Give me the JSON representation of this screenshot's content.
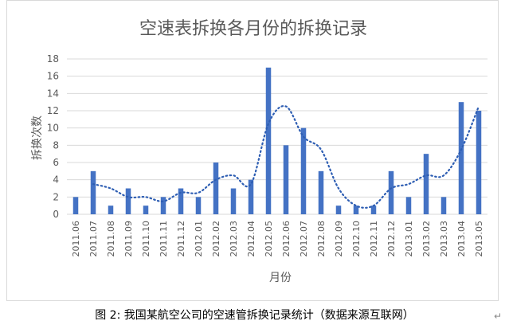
{
  "caption": "图 2: 我国某航空公司的空速管拆换记录统计（数据来源互联网）",
  "caption_return_mark": "↵",
  "colors": {
    "bar": "#4472c4",
    "trend": "#2e5eb3",
    "grid": "#d9d9d9",
    "text": "#595959"
  },
  "chart_data": {
    "type": "bar",
    "title": "空速表拆换各月份的拆换记录",
    "xlabel": "月份",
    "ylabel": "拆换次数",
    "ylim": [
      0,
      18
    ],
    "yticks": [
      0,
      2,
      4,
      6,
      8,
      10,
      12,
      14,
      16,
      18
    ],
    "grid": true,
    "categories": [
      "2011.06",
      "2011.07",
      "2011.08",
      "2011.09",
      "2011.10",
      "2011.11",
      "2011.12",
      "2012.01",
      "2012.02",
      "2012.03",
      "2012.04",
      "2012.05",
      "2012.06",
      "2012.07",
      "2012.08",
      "2012.09",
      "2012.10",
      "2012.11",
      "2012.12",
      "2013.01",
      "2013.02",
      "2013.03",
      "2013.04",
      "2013.05"
    ],
    "series": [
      {
        "type": "bar",
        "values": [
          2,
          5,
          1,
          3,
          1,
          2,
          3,
          2,
          6,
          3,
          4,
          17,
          8,
          10,
          5,
          1,
          1,
          1,
          5,
          2,
          7,
          2,
          13,
          12
        ]
      },
      {
        "type": "line",
        "style": "dotted",
        "trendline": "moving-average-2",
        "values": [
          null,
          3.5,
          3,
          2,
          2,
          1.5,
          2.5,
          2.5,
          4,
          4.5,
          3.5,
          10.5,
          12.5,
          9,
          7.5,
          3,
          1,
          1,
          3,
          3.5,
          4.5,
          4.5,
          7.5,
          12.5
        ]
      }
    ]
  }
}
